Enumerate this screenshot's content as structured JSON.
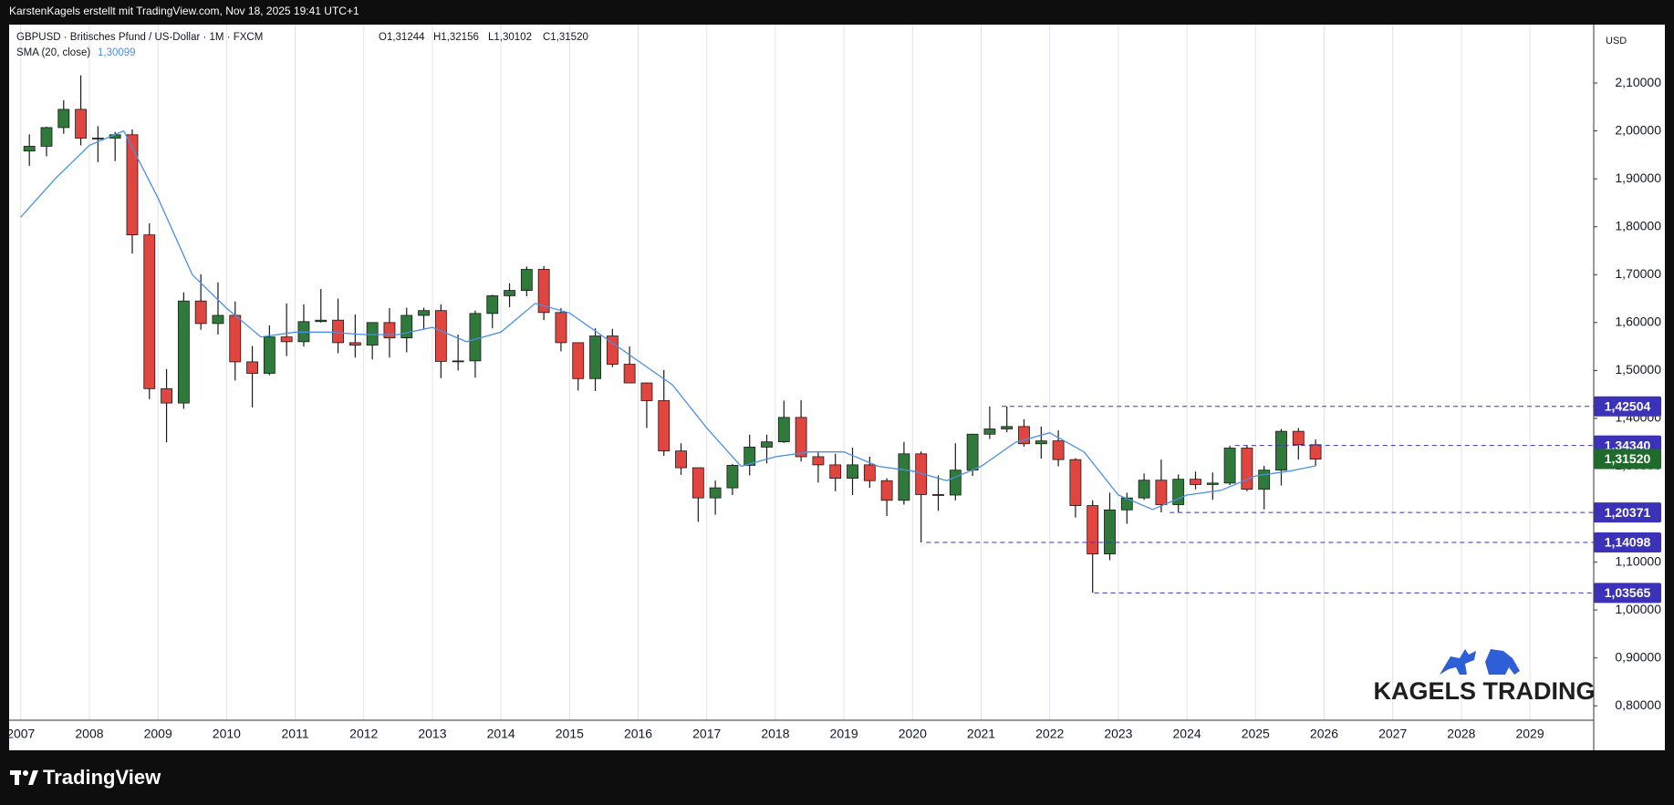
{
  "header": {
    "caption": "KarstenKagels erstellt mit TradingView.com, Nov 18, 2025 19:41 UTC+1"
  },
  "footer": {
    "brand": "TradingView"
  },
  "chart_data": {
    "type": "candlestick",
    "legend": {
      "symbol": "GBPUSD · Britisches Pfund / US-Dollar · 1M · FXCM",
      "ohlc": [
        "O1,31244",
        "H1,32156",
        "L1,30102",
        "C1,31520"
      ]
    },
    "price_unit": "USD",
    "watermark": "KAGELS TRADING",
    "up_color": "#2f7a3b",
    "down_color": "#e0463f",
    "wick_color": "#1a1a1a",
    "grid": "vertical",
    "xlim": [
      2006.83,
      2029.93
    ],
    "xticks": [
      2007,
      2008,
      2009,
      2010,
      2011,
      2012,
      2013,
      2014,
      2015,
      2016,
      2017,
      2018,
      2019,
      2020,
      2021,
      2022,
      2023,
      2024,
      2025,
      2026,
      2027,
      2028,
      2029
    ],
    "ylim": [
      0.77,
      2.22
    ],
    "yticks": [
      {
        "value": 0.8,
        "label": "0,80000"
      },
      {
        "value": 0.9,
        "label": "0,90000"
      },
      {
        "value": 1.0,
        "label": "1,00000"
      },
      {
        "value": 1.1,
        "label": "1,10000"
      },
      {
        "value": 1.2,
        "label": "1,20000"
      },
      {
        "value": 1.3,
        "label": "1,30000"
      },
      {
        "value": 1.4,
        "label": "1,40000"
      },
      {
        "value": 1.5,
        "label": "1,50000"
      },
      {
        "value": 1.6,
        "label": "1,60000"
      },
      {
        "value": 1.7,
        "label": "1,70000"
      },
      {
        "value": 1.8,
        "label": "1,80000"
      },
      {
        "value": 1.9,
        "label": "1,90000"
      },
      {
        "value": 2.0,
        "label": "2,00000"
      },
      {
        "value": 2.1,
        "label": "2,10000"
      }
    ],
    "x": [
      2007.125,
      2007.375,
      2007.625,
      2007.875,
      2008.125,
      2008.375,
      2008.625,
      2008.875,
      2009.125,
      2009.375,
      2009.625,
      2009.875,
      2010.125,
      2010.375,
      2010.625,
      2010.875,
      2011.125,
      2011.375,
      2011.625,
      2011.875,
      2012.125,
      2012.375,
      2012.625,
      2012.875,
      2013.125,
      2013.375,
      2013.625,
      2013.875,
      2014.125,
      2014.375,
      2014.625,
      2014.875,
      2015.125,
      2015.375,
      2015.625,
      2015.875,
      2016.125,
      2016.375,
      2016.625,
      2016.875,
      2017.125,
      2017.375,
      2017.625,
      2017.875,
      2018.125,
      2018.375,
      2018.625,
      2018.875,
      2019.125,
      2019.375,
      2019.625,
      2019.875,
      2020.125,
      2020.375,
      2020.625,
      2020.875,
      2021.125,
      2021.375,
      2021.625,
      2021.875,
      2022.125,
      2022.375,
      2022.625,
      2022.875,
      2023.125,
      2023.375,
      2023.625,
      2023.875,
      2024.125,
      2024.375,
      2024.625,
      2024.875,
      2025.125,
      2025.375,
      2025.625,
      2025.875
    ],
    "open": [
      1.958,
      1.968,
      2.007,
      2.045,
      1.985,
      1.985,
      1.992,
      1.783,
      1.462,
      1.432,
      1.645,
      1.598,
      1.615,
      1.518,
      1.494,
      1.57,
      1.56,
      1.602,
      1.605,
      1.558,
      1.553,
      1.6,
      1.568,
      1.615,
      1.625,
      1.519,
      1.52,
      1.619,
      1.656,
      1.667,
      1.711,
      1.621,
      1.558,
      1.483,
      1.572,
      1.513,
      1.474,
      1.437,
      1.332,
      1.297,
      1.234,
      1.255,
      1.302,
      1.34,
      1.351,
      1.402,
      1.32,
      1.303,
      1.275,
      1.303,
      1.27,
      1.229,
      1.326,
      1.241,
      1.24,
      1.292,
      1.367,
      1.378,
      1.383,
      1.347,
      1.353,
      1.314,
      1.218,
      1.117,
      1.209,
      1.234,
      1.271,
      1.22,
      1.273,
      1.262,
      1.265,
      1.338,
      1.252,
      1.292,
      1.373,
      1.345
    ],
    "high": [
      1.993,
      2.009,
      2.064,
      2.116,
      2.01,
      1.998,
      2.003,
      1.807,
      1.503,
      1.663,
      1.701,
      1.684,
      1.644,
      1.551,
      1.594,
      1.64,
      1.638,
      1.67,
      1.65,
      1.617,
      1.6,
      1.63,
      1.631,
      1.631,
      1.638,
      1.575,
      1.625,
      1.658,
      1.682,
      1.717,
      1.718,
      1.63,
      1.558,
      1.588,
      1.587,
      1.55,
      1.475,
      1.501,
      1.348,
      1.297,
      1.27,
      1.305,
      1.366,
      1.366,
      1.437,
      1.438,
      1.33,
      1.326,
      1.339,
      1.32,
      1.275,
      1.351,
      1.331,
      1.281,
      1.348,
      1.368,
      1.425,
      1.425,
      1.398,
      1.383,
      1.375,
      1.317,
      1.229,
      1.245,
      1.245,
      1.285,
      1.314,
      1.283,
      1.289,
      1.287,
      1.343,
      1.343,
      1.301,
      1.378,
      1.38,
      1.356
    ],
    "low": [
      1.927,
      1.947,
      1.994,
      1.97,
      1.935,
      1.937,
      1.744,
      1.44,
      1.35,
      1.42,
      1.585,
      1.575,
      1.479,
      1.423,
      1.49,
      1.53,
      1.55,
      1.6,
      1.536,
      1.527,
      1.523,
      1.527,
      1.538,
      1.587,
      1.484,
      1.5,
      1.485,
      1.588,
      1.632,
      1.655,
      1.605,
      1.54,
      1.458,
      1.457,
      1.507,
      1.474,
      1.38,
      1.322,
      1.282,
      1.184,
      1.199,
      1.24,
      1.281,
      1.306,
      1.349,
      1.31,
      1.266,
      1.248,
      1.24,
      1.255,
      1.196,
      1.22,
      1.141,
      1.207,
      1.229,
      1.28,
      1.357,
      1.371,
      1.341,
      1.316,
      1.3,
      1.193,
      1.036,
      1.104,
      1.18,
      1.23,
      1.204,
      1.204,
      1.252,
      1.23,
      1.261,
      1.248,
      1.21,
      1.26,
      1.314,
      1.301
    ],
    "close": [
      1.968,
      2.007,
      2.045,
      1.985,
      1.985,
      1.992,
      1.783,
      1.462,
      1.432,
      1.645,
      1.598,
      1.615,
      1.518,
      1.494,
      1.57,
      1.56,
      1.602,
      1.605,
      1.558,
      1.553,
      1.6,
      1.568,
      1.615,
      1.625,
      1.519,
      1.52,
      1.619,
      1.656,
      1.667,
      1.711,
      1.621,
      1.558,
      1.483,
      1.572,
      1.513,
      1.474,
      1.437,
      1.332,
      1.297,
      1.234,
      1.255,
      1.302,
      1.34,
      1.351,
      1.402,
      1.32,
      1.303,
      1.275,
      1.303,
      1.27,
      1.229,
      1.326,
      1.241,
      1.24,
      1.292,
      1.367,
      1.378,
      1.383,
      1.347,
      1.353,
      1.314,
      1.218,
      1.117,
      1.209,
      1.234,
      1.271,
      1.22,
      1.273,
      1.262,
      1.265,
      1.338,
      1.252,
      1.292,
      1.373,
      1.345,
      1.315
    ],
    "sma": {
      "name": "SMA (20, close)",
      "value_label": "1,30099",
      "color": "#4a8fe7",
      "x": [
        2007.0,
        2007.5,
        2008.0,
        2008.5,
        2009.0,
        2009.5,
        2010.0,
        2010.5,
        2011.0,
        2011.5,
        2012.0,
        2012.5,
        2013.0,
        2013.5,
        2014.0,
        2014.5,
        2015.0,
        2015.5,
        2016.0,
        2016.5,
        2017.0,
        2017.5,
        2018.0,
        2018.5,
        2019.0,
        2019.5,
        2020.0,
        2020.5,
        2021.0,
        2021.5,
        2022.0,
        2022.5,
        2023.0,
        2023.5,
        2024.0,
        2024.5,
        2025.0,
        2025.5,
        2025.875
      ],
      "values": [
        1.82,
        1.9,
        1.97,
        2.0,
        1.86,
        1.7,
        1.63,
        1.57,
        1.58,
        1.58,
        1.575,
        1.575,
        1.59,
        1.56,
        1.58,
        1.64,
        1.62,
        1.57,
        1.52,
        1.47,
        1.38,
        1.3,
        1.32,
        1.33,
        1.33,
        1.3,
        1.29,
        1.27,
        1.3,
        1.35,
        1.37,
        1.33,
        1.24,
        1.21,
        1.24,
        1.25,
        1.28,
        1.29,
        1.301
      ]
    },
    "levels": {
      "color": "#3b32b8",
      "items": [
        {
          "value": 1.42504,
          "label": "1,42504",
          "from": 2021.3
        },
        {
          "value": 1.3434,
          "label": "1,34340",
          "from": 2024.7
        },
        {
          "value": 1.20371,
          "label": "1,20371",
          "from": 2023.75
        },
        {
          "value": 1.14098,
          "label": "1,14098",
          "from": 2020.2
        },
        {
          "value": 1.03565,
          "label": "1,03565",
          "from": 2022.65
        }
      ]
    },
    "last_price": {
      "value": 1.3152,
      "label": "1,31520",
      "color": "#1f6b2c"
    }
  }
}
